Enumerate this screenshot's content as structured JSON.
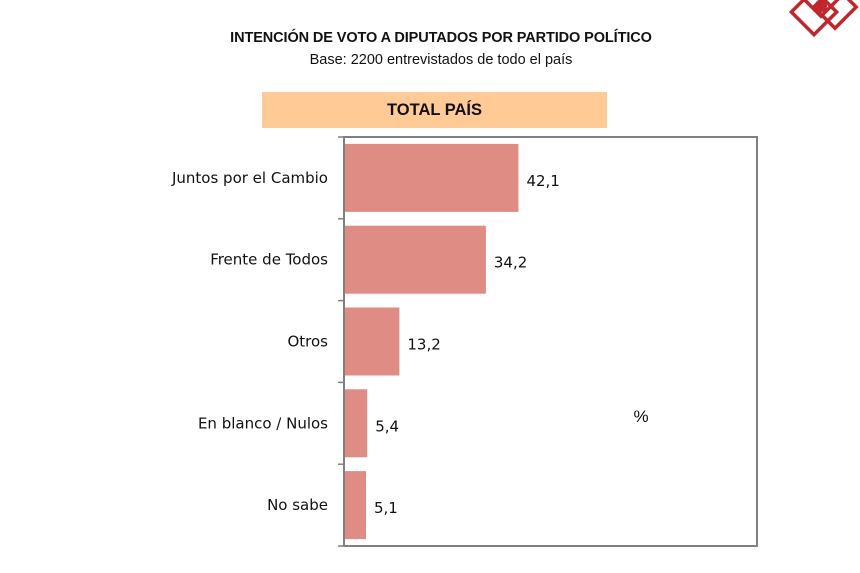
{
  "header": {
    "title": "INTENCIÓN DE VOTO A DIPUTADOS POR PARTIDO POLÍTICO",
    "subtitle": "Base: 2200 entrevistados de todo el país",
    "banner": "TOTAL PAÍS"
  },
  "logo": {
    "icon": "brand-diamond-logo-icon",
    "color": "#C0272D"
  },
  "colors": {
    "bar": "#DE8C84",
    "banner": "#FFCA96",
    "frame": "#808080"
  },
  "chart_data": {
    "type": "bar",
    "orientation": "horizontal",
    "title": "INTENCIÓN DE VOTO A DIPUTADOS POR PARTIDO POLÍTICO",
    "subtitle": "Base: 2200 entrevistados de todo el país",
    "panel_title": "TOTAL PAÍS",
    "categories": [
      "Juntos por el Cambio",
      "Frente de Todos",
      "Otros",
      "En blanco / Nulos",
      "No sabe"
    ],
    "values": [
      42.1,
      34.2,
      13.2,
      5.4,
      5.1
    ],
    "value_labels": [
      "42,1",
      "34,2",
      "13,2",
      "5,4",
      "5,1"
    ],
    "unit_label": "%",
    "xlabel": "",
    "ylabel": "",
    "xlim": [
      0,
      100
    ],
    "grid": false,
    "legend": "none"
  }
}
